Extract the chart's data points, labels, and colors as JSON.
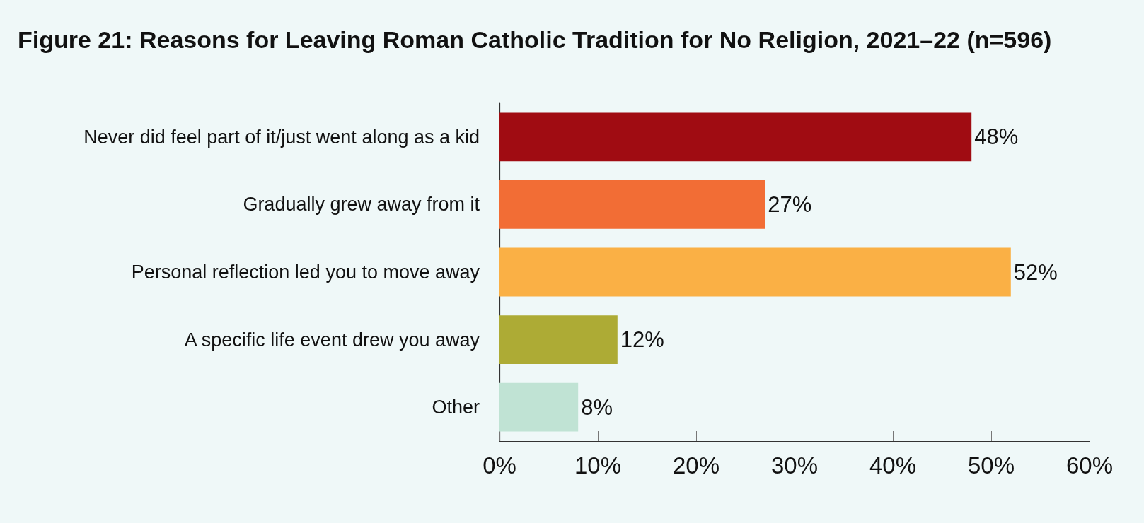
{
  "chart_data": {
    "type": "bar",
    "orientation": "horizontal",
    "title": "Figure 21: Reasons for Leaving Roman Catholic Tradition for No Religion, 2021–22 (n=596)",
    "categories": [
      "Never did feel part of it/just went along as a kid",
      "Gradually grew away from it",
      "Personal reflection led you to move away",
      "A specific life event drew you away",
      "Other"
    ],
    "values": [
      48,
      27,
      52,
      12,
      8
    ],
    "colors": [
      "#a00c12",
      "#f26d35",
      "#fab045",
      "#adab35",
      "#c0e3d4"
    ],
    "xlim": [
      0,
      60
    ],
    "xticks": [
      {
        "value": 0,
        "label": "0%"
      },
      {
        "value": 10,
        "label": "10%"
      },
      {
        "value": 20,
        "label": "20%"
      },
      {
        "value": 30,
        "label": "30%"
      },
      {
        "value": 40,
        "label": "40%"
      },
      {
        "value": 50,
        "label": "50%"
      },
      {
        "value": 60,
        "label": "60%"
      }
    ],
    "value_labels": [
      "48%",
      "27%",
      "52%",
      "12%",
      "8%"
    ]
  }
}
